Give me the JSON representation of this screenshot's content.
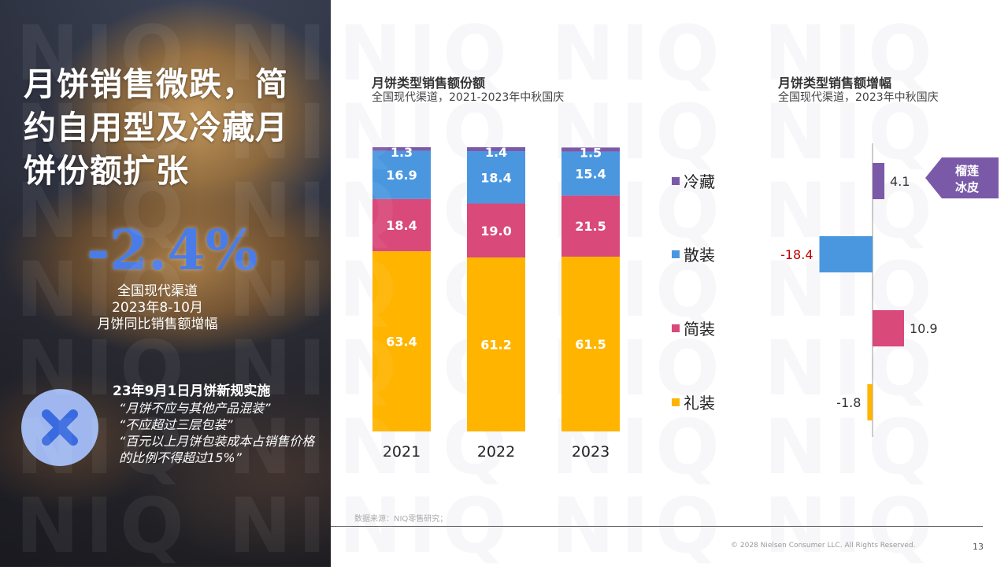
{
  "left": {
    "headline": "月饼销售微跌，简约自用型及冷藏月饼份额扩张",
    "big_value": "-2.4%",
    "value_desc": [
      "全国现代渠道",
      "2023年8-10月",
      "月饼同比销售额增幅"
    ],
    "regulation_title": "23年9月1日月饼新规实施",
    "regulation_lines": [
      "“月饼不应与其他产品混装”",
      "“不应超过三层包装”",
      "“百元以上月饼包装成本占销售价格的比例不得超过15%”"
    ],
    "icon": "x-mark-icon"
  },
  "watermark": "NIQ",
  "chart_data": [
    {
      "type": "bar",
      "stacked": true,
      "title": "月饼类型销售额份额",
      "subtitle": "全国现代渠道，2021-2023年中秋国庆",
      "categories": [
        "2021",
        "2022",
        "2023"
      ],
      "series": [
        {
          "name": "礼装",
          "color": "#ffb400",
          "values": [
            63.4,
            61.2,
            61.5
          ]
        },
        {
          "name": "简装",
          "color": "#d9497a",
          "values": [
            18.4,
            19.0,
            21.5
          ]
        },
        {
          "name": "散装",
          "color": "#4a97e0",
          "values": [
            16.9,
            18.4,
            15.4
          ]
        },
        {
          "name": "冷藏",
          "color": "#7a5aa8",
          "values": [
            1.3,
            1.4,
            1.5
          ]
        }
      ],
      "labels": [
        [
          "63.4",
          "18.4",
          "16.9",
          "1.3"
        ],
        [
          "61.2",
          "19.0",
          "18.4",
          "1.4"
        ],
        [
          "61.5",
          "21.5",
          "15.4",
          "1.5"
        ]
      ],
      "ylim": [
        0,
        100
      ]
    },
    {
      "type": "bar",
      "orientation": "horizontal",
      "title": "月饼类型销售额增幅",
      "subtitle": "全国现代渠道，2023年中秋国庆",
      "categories": [
        "冷藏",
        "散装",
        "简装",
        "礼装"
      ],
      "values": [
        4.1,
        -18.4,
        10.9,
        -1.8
      ],
      "labels": [
        "4.1",
        "-18.4",
        "10.9",
        "-1.8"
      ],
      "colors": [
        "#7a5aa8",
        "#4a97e0",
        "#d9497a",
        "#ffb400"
      ],
      "negative_label_colors": [
        "#333333",
        "#c00000",
        "#333333",
        "#333333"
      ],
      "callout": {
        "text": [
          "榴莲",
          "冰皮"
        ],
        "color": "#7a5aa8",
        "target": "冷藏"
      }
    }
  ],
  "footer": {
    "source": "数据来源：NIQ零售研究；",
    "copyright": "© 2028 Nielsen Consumer LLC. All Rights Reserved.",
    "page": "13"
  }
}
